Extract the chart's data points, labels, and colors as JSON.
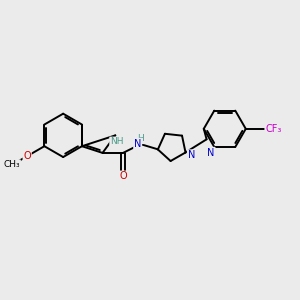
{
  "background_color": "#ebebeb",
  "bond_color": "#000000",
  "bond_width": 1.4,
  "atom_colors": {
    "N": "#0000cc",
    "O": "#cc0000",
    "F": "#cc00cc",
    "C": "#000000",
    "H": "#4a9a8a"
  },
  "font_size": 7.0,
  "figsize": [
    3.0,
    3.0
  ],
  "dpi": 100,
  "xlim": [
    0,
    10
  ],
  "ylim": [
    0,
    10
  ]
}
